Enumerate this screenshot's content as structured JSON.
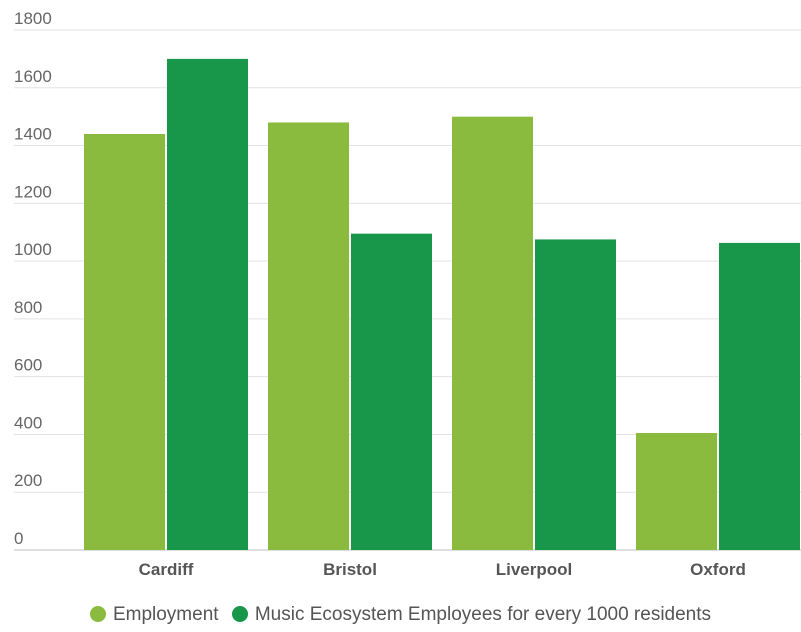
{
  "chart_data": {
    "type": "bar",
    "categories": [
      "Cardiff",
      "Bristol",
      "Liverpool",
      "Oxford"
    ],
    "series": [
      {
        "name": "Employment",
        "color": "#8bbb3e",
        "values": [
          1440,
          1480,
          1500,
          405
        ]
      },
      {
        "name": "Music Ecosystem Employees for every 1000 residents",
        "color": "#18964a",
        "values": [
          1700,
          1095,
          1075,
          1063
        ]
      }
    ],
    "yticks": [
      "0",
      "200",
      "400",
      "600",
      "800",
      "1000",
      "1200",
      "1400",
      "1600",
      "1800"
    ],
    "ylim": [
      0,
      1800
    ],
    "grid": true,
    "legend_position": "bottom"
  }
}
